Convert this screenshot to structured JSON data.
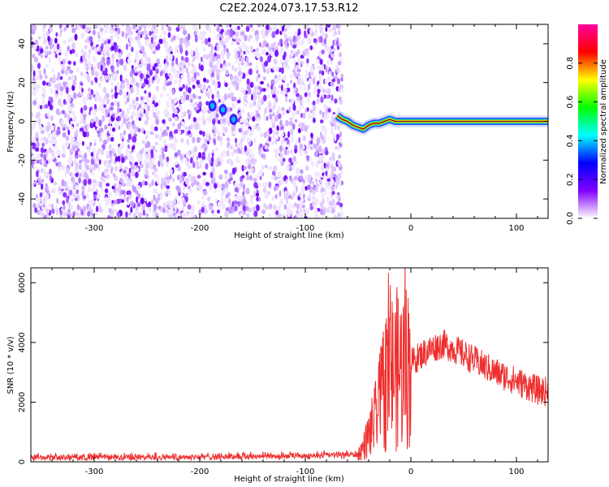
{
  "title": "C2E2.2024.073.17.53.R12",
  "chart_data": [
    {
      "type": "heatmap",
      "xlabel": "Height of straight line (km)",
      "ylabel": "Frequency (Hz)",
      "xlim": [
        -360,
        130
      ],
      "ylim": [
        -50,
        50
      ],
      "xticks": [
        "-300",
        "-200",
        "-100",
        "0",
        "100"
      ],
      "yticks": [
        "40",
        "20",
        "0",
        "-20",
        "-40"
      ],
      "colorbar": {
        "label": "Normalized spectral amplitude",
        "range": [
          0,
          1
        ],
        "ticks": [
          "0.0",
          "0.2",
          "0.4",
          "0.6",
          "0.8"
        ],
        "colormap": [
          "#ffffff",
          "#8000ff",
          "#0000ff",
          "#00ffff",
          "#00ff00",
          "#ffff00",
          "#ff0000",
          "#ff00a0"
        ]
      },
      "noise_region_x": [
        -360,
        -65
      ],
      "signal_trace": {
        "x": [
          -70,
          -65,
          -60,
          -55,
          -50,
          -45,
          -40,
          -35,
          -30,
          -25,
          -20,
          -15,
          -10,
          0,
          20,
          50,
          100,
          130
        ],
        "y": [
          3,
          1,
          0,
          -2,
          -3,
          -4,
          -2,
          -1,
          -1,
          0,
          1,
          0,
          0,
          0,
          0,
          0,
          0,
          0
        ]
      },
      "blobs": [
        {
          "x": -188,
          "y": 8
        },
        {
          "x": -178,
          "y": 6
        },
        {
          "x": -168,
          "y": 1
        }
      ]
    },
    {
      "type": "line",
      "xlabel": "Height of straight line (km)",
      "ylabel": "SNR (10 * v/v)",
      "xlim": [
        -360,
        130
      ],
      "ylim": [
        0,
        6500
      ],
      "xticks": [
        "-300",
        "-200",
        "-100",
        "0",
        "100"
      ],
      "yticks": [
        "0",
        "2000",
        "4000",
        "6000"
      ],
      "line_color": "#ef2f2f",
      "series_envelope": {
        "x": [
          -360,
          -300,
          -200,
          -100,
          -50,
          -45,
          -40,
          -35,
          -30,
          -25,
          -20,
          -15,
          -10,
          -5,
          0,
          10,
          20,
          30,
          40,
          50,
          60,
          70,
          80,
          90,
          100,
          110,
          120,
          130
        ],
        "y": [
          150,
          150,
          170,
          200,
          250,
          500,
          900,
          1300,
          1800,
          2600,
          3000,
          3100,
          3100,
          3200,
          3300,
          3600,
          3800,
          3950,
          3800,
          3600,
          3400,
          3200,
          3000,
          2850,
          2700,
          2550,
          2400,
          2350
        ]
      }
    }
  ]
}
